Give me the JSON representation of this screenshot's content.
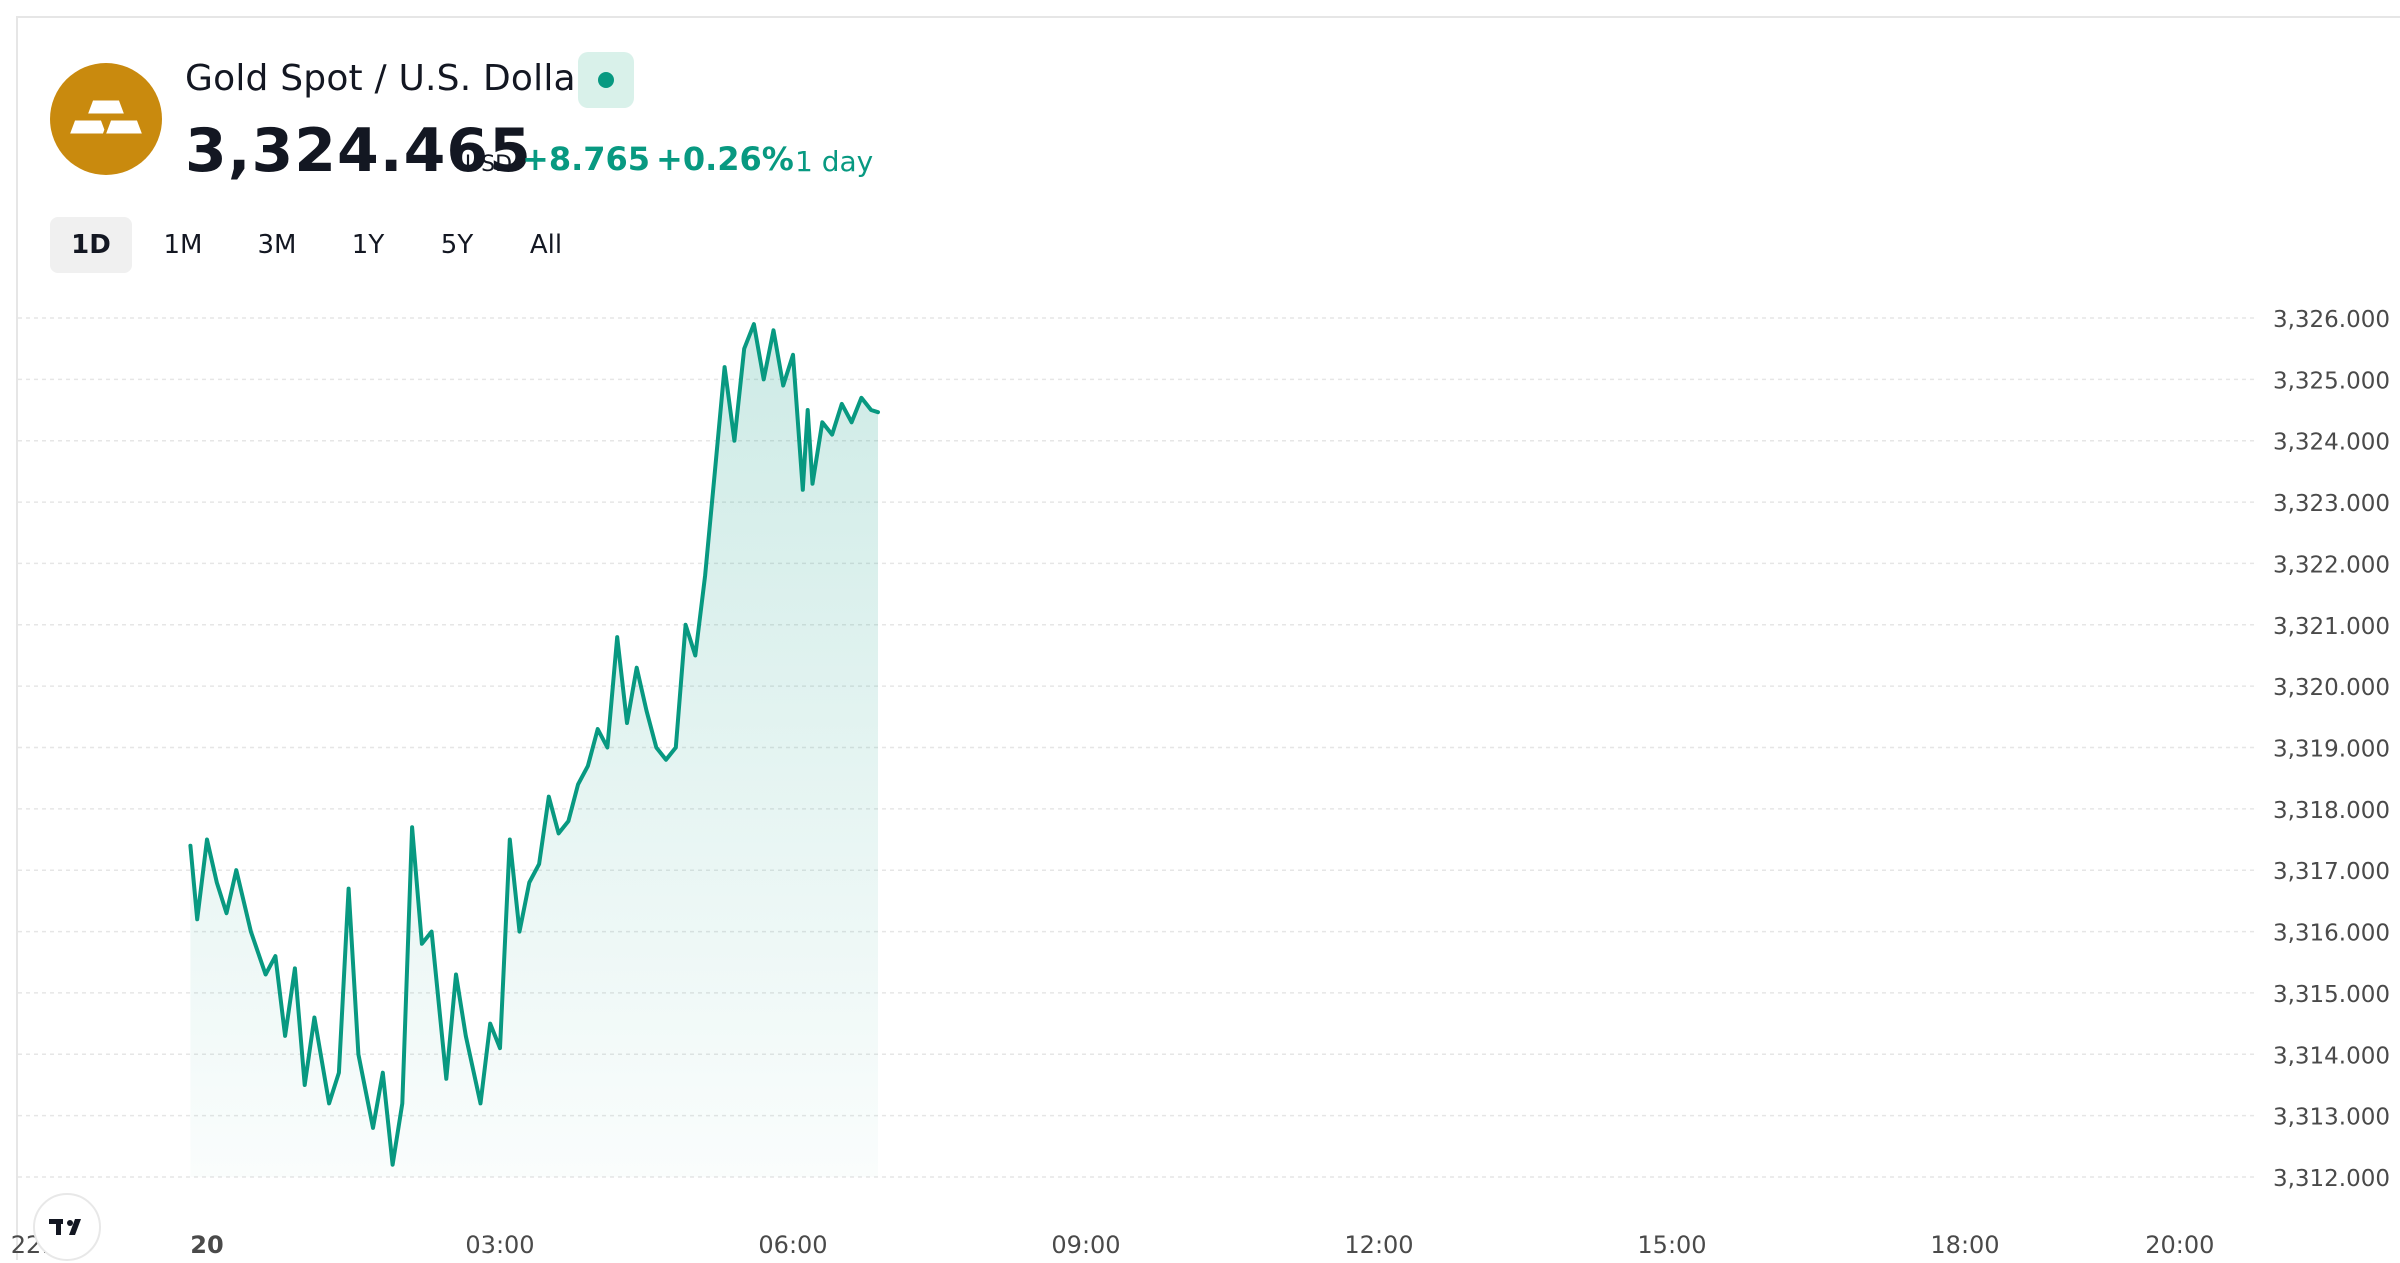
{
  "header": {
    "title": "Gold Spot / U.S. Dollar",
    "logo_icon": "gold-bars-icon",
    "status": "market-open",
    "price": "3,324.465",
    "currency": "USD",
    "change": "+8.765",
    "change_pct": "+0.26%",
    "period": "1 day"
  },
  "tabs": [
    {
      "label": "1D",
      "active": true
    },
    {
      "label": "1M",
      "active": false
    },
    {
      "label": "3M",
      "active": false
    },
    {
      "label": "1Y",
      "active": false
    },
    {
      "label": "5Y",
      "active": false
    },
    {
      "label": "All",
      "active": false
    }
  ],
  "colors": {
    "accent": "#089981",
    "logo_bg": "#c98a0e",
    "grid": "#e6e6e6",
    "axis_text": "#4a4a4a"
  },
  "chart_data": {
    "type": "area",
    "xlabel": "",
    "ylabel": "",
    "ylim": [
      3311.5,
      3326.6
    ],
    "grid": true,
    "x_tick_labels": [
      "22:",
      "20",
      "03:00",
      "06:00",
      "09:00",
      "12:00",
      "15:00",
      "18:00",
      "20:00"
    ],
    "y_ticks": [
      3312,
      3313,
      3314,
      3315,
      3316,
      3317,
      3318,
      3319,
      3320,
      3321,
      3322,
      3323,
      3324,
      3325,
      3326
    ],
    "y_tick_labels": [
      "3,312.000",
      "3,313.000",
      "3,314.000",
      "3,315.000",
      "3,316.000",
      "3,317.000",
      "3,318.000",
      "3,319.000",
      "3,320.000",
      "3,321.000",
      "3,322.000",
      "3,323.000",
      "3,324.000",
      "3,325.000",
      "3,326.000"
    ],
    "series": [
      {
        "x_hours": [
          -0.17,
          -0.1,
          0,
          0.1,
          0.2,
          0.3,
          0.45,
          0.6,
          0.7,
          0.8,
          0.9,
          1.0,
          1.1,
          1.25,
          1.35,
          1.45,
          1.55,
          1.7,
          1.8,
          1.9,
          2.0,
          2.1,
          2.2,
          2.3,
          2.45,
          2.55,
          2.65,
          2.8,
          2.9,
          3.0,
          3.1,
          3.2,
          3.3,
          3.4,
          3.5,
          3.6,
          3.7,
          3.8,
          3.9,
          4.0,
          4.1,
          4.2,
          4.3,
          4.4,
          4.5,
          4.6,
          4.7,
          4.8,
          4.9,
          5.0,
          5.1,
          5.2,
          5.3,
          5.4,
          5.5,
          5.6,
          5.7,
          5.8,
          5.9,
          6.0,
          6.1,
          6.15,
          6.2,
          6.3,
          6.4,
          6.5,
          6.6,
          6.7,
          6.8,
          6.87
        ],
        "values": [
          3317.4,
          3316.2,
          3317.5,
          3316.8,
          3316.3,
          3317.0,
          3316.0,
          3315.3,
          3315.6,
          3314.3,
          3315.4,
          3313.5,
          3314.6,
          3313.2,
          3313.7,
          3316.7,
          3314.0,
          3312.8,
          3313.7,
          3312.2,
          3313.2,
          3317.7,
          3315.8,
          3316.0,
          3313.6,
          3315.3,
          3314.3,
          3313.2,
          3314.5,
          3314.1,
          3317.5,
          3316.0,
          3316.8,
          3317.1,
          3318.2,
          3317.6,
          3317.8,
          3318.4,
          3318.7,
          3319.3,
          3319.0,
          3320.8,
          3319.4,
          3320.3,
          3319.6,
          3319.0,
          3318.8,
          3319.0,
          3321.0,
          3320.5,
          3321.8,
          3323.5,
          3325.2,
          3324.0,
          3325.5,
          3325.9,
          3325.0,
          3325.8,
          3324.9,
          3325.4,
          3323.2,
          3324.5,
          3323.3,
          3324.3,
          3324.1,
          3324.6,
          3324.3,
          3324.7,
          3324.5,
          3324.465
        ]
      }
    ]
  }
}
